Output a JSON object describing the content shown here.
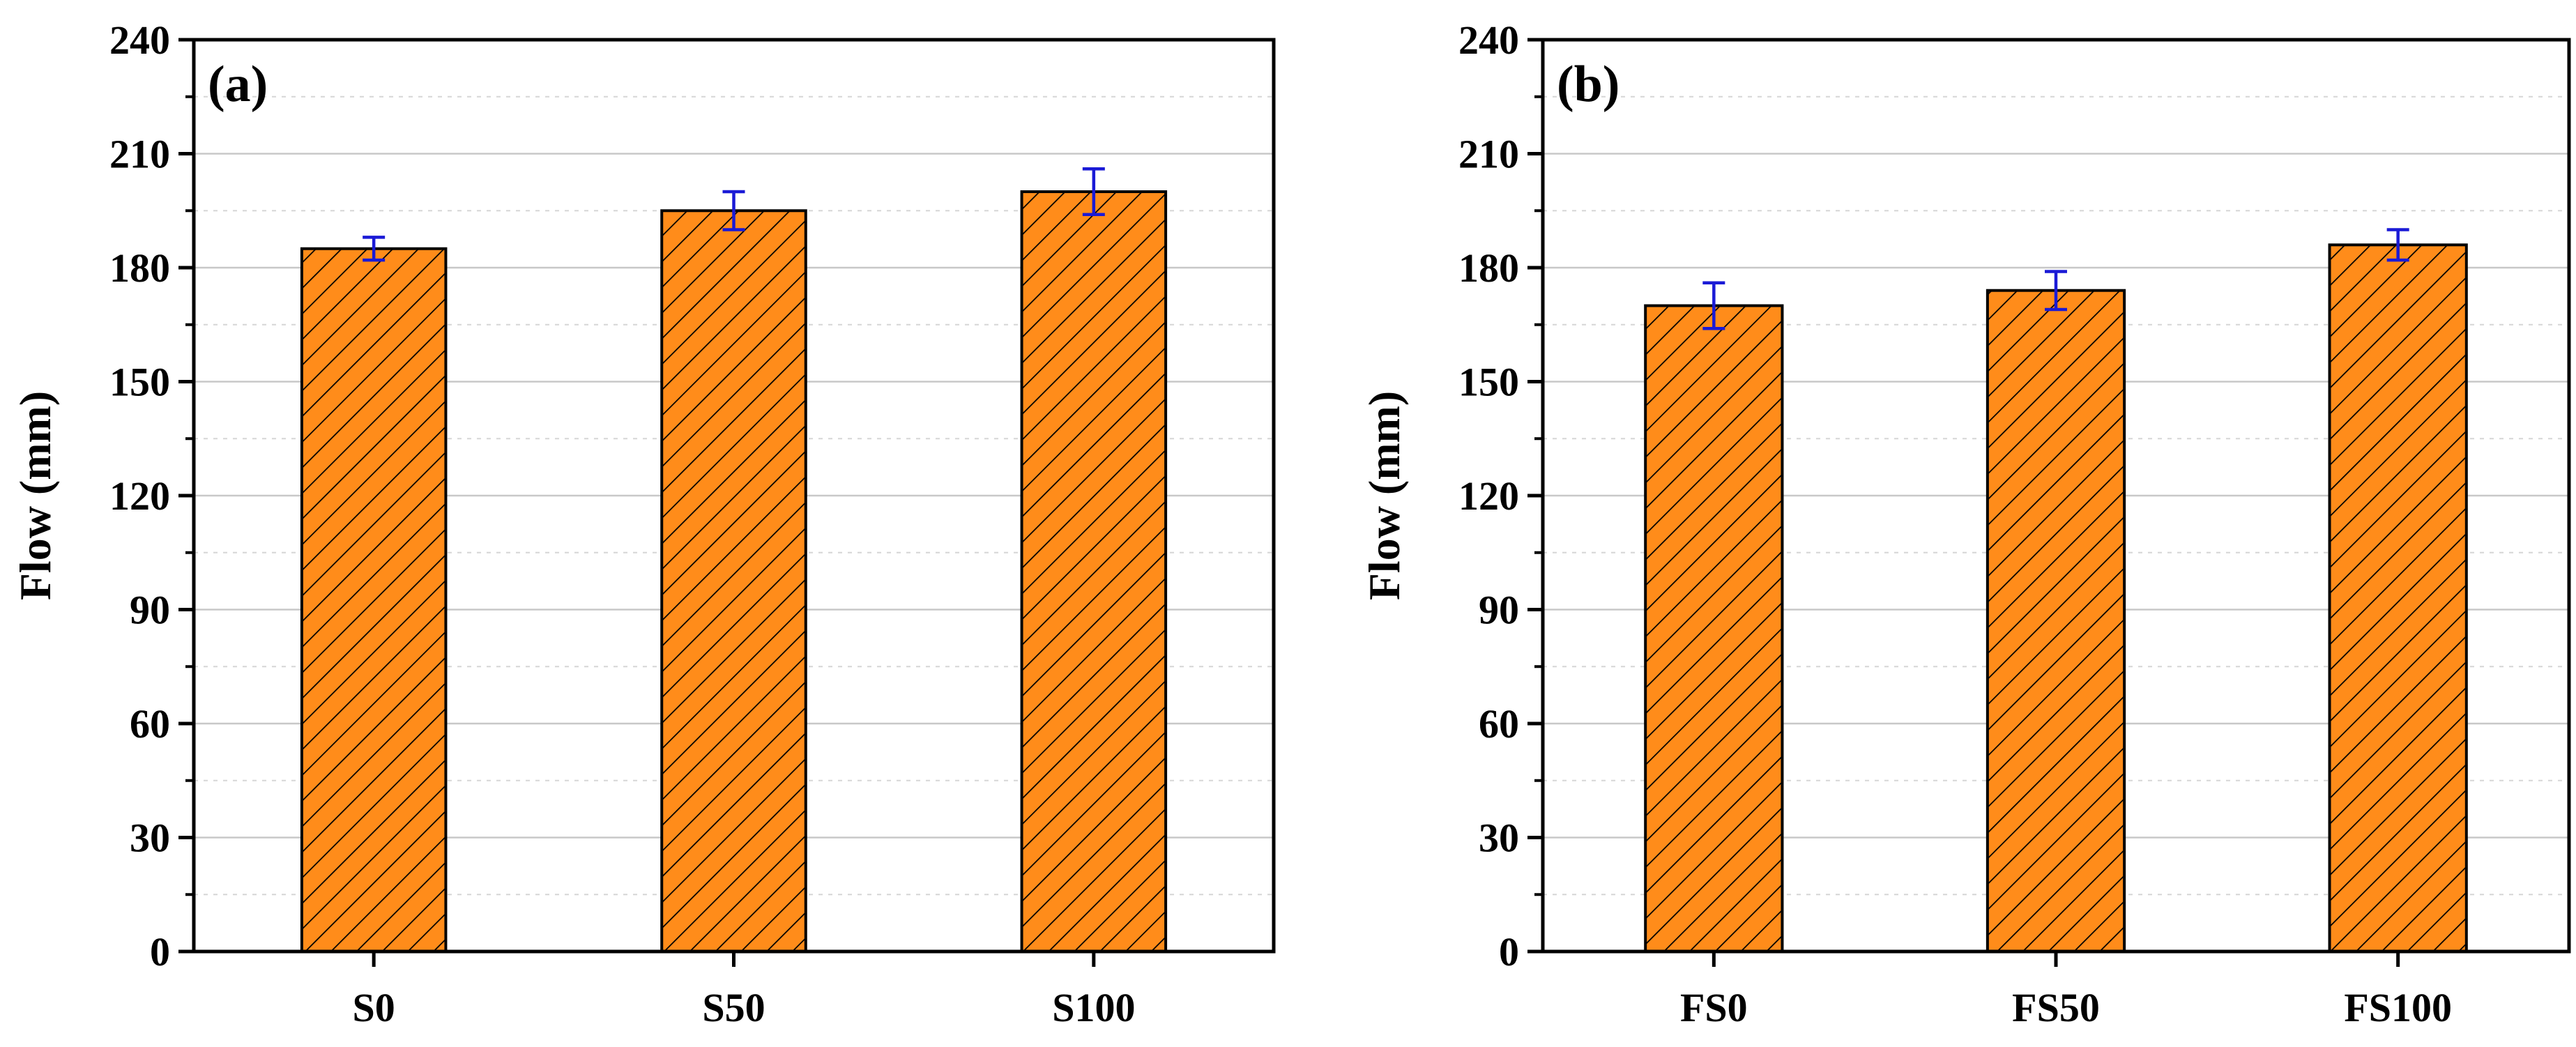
{
  "chart_data": [
    {
      "type": "bar",
      "panel_label": "(a)",
      "categories": [
        "S0",
        "S50",
        "S100"
      ],
      "values": [
        185,
        195,
        200
      ],
      "errors": [
        3,
        5,
        6
      ],
      "xlabel": "",
      "ylabel": "Flow (mm)",
      "ylim": [
        0,
        240
      ],
      "yticks": [
        "0",
        "30",
        "60",
        "90",
        "120",
        "150",
        "180",
        "210",
        "240"
      ],
      "grid": true,
      "bar_color": "#ff8c1a",
      "error_color": "#1a1ad6"
    },
    {
      "type": "bar",
      "panel_label": "(b)",
      "categories": [
        "FS0",
        "FS50",
        "FS100"
      ],
      "values": [
        170,
        174,
        186
      ],
      "errors": [
        6,
        5,
        4
      ],
      "xlabel": "",
      "ylabel": "Flow (mm)",
      "ylim": [
        0,
        240
      ],
      "yticks": [
        "0",
        "30",
        "60",
        "90",
        "120",
        "150",
        "180",
        "210",
        "240"
      ],
      "grid": true,
      "bar_color": "#ff8c1a",
      "error_color": "#1a1ad6"
    }
  ]
}
